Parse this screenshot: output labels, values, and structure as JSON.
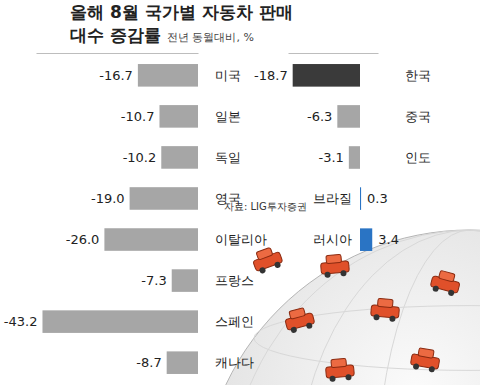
{
  "chart_data": [
    {
      "type": "bar",
      "orientation": "horizontal",
      "title": "올해 8월 국가별 자동차 판매 대수 증감률",
      "subtitle": "전년 동월대비, %",
      "categories": [
        "미국",
        "일본",
        "독일",
        "영국",
        "이탈리아",
        "프랑스",
        "스페인",
        "캐나다"
      ],
      "values": [
        -16.7,
        -10.7,
        -10.2,
        -19.0,
        -26.0,
        -7.3,
        -43.2,
        -8.7
      ],
      "value_labels": [
        "-16.7",
        "-10.7",
        "-10.2",
        "-19.0",
        "-26.0",
        "-7.3",
        "-43.2",
        "-8.7"
      ],
      "color": "#a6a6a6",
      "xlim": [
        -45,
        0
      ],
      "data_labels": true,
      "tick_labels": "y"
    },
    {
      "type": "bar",
      "orientation": "horizontal",
      "categories": [
        "한국",
        "중국",
        "인도",
        "브라질",
        "러시아"
      ],
      "values": [
        -18.7,
        -6.3,
        -3.1,
        0.3,
        3.4
      ],
      "value_labels": [
        "-18.7",
        "-6.3",
        "-3.1",
        "0.3",
        "3.4"
      ],
      "colors": [
        "#3a3a3a",
        "#a6a6a6",
        "#a6a6a6",
        "#2a74c4",
        "#2a74c4"
      ],
      "xlim": [
        -20,
        5
      ],
      "data_labels": true,
      "tick_labels": "y",
      "annotations": [
        "자료: LIG투자증권"
      ]
    }
  ]
}
